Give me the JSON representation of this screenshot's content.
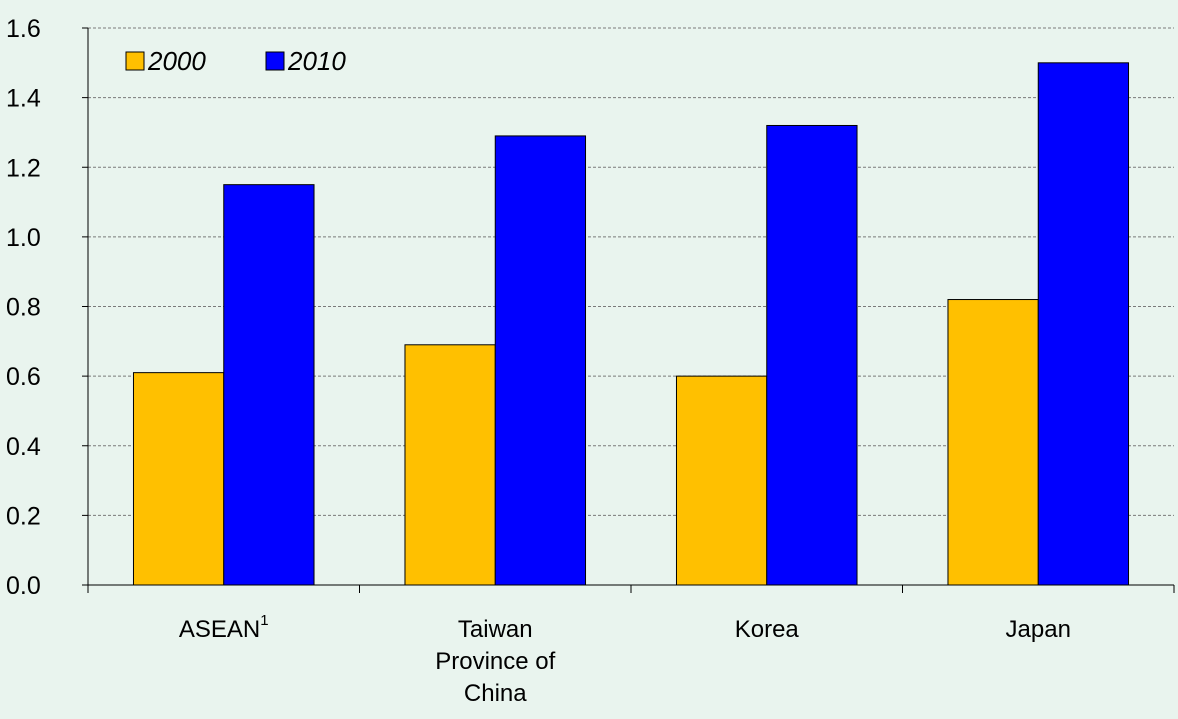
{
  "chart_data": {
    "type": "bar",
    "title": "",
    "xlabel": "",
    "ylabel": "",
    "categories": [
      {
        "lines": [
          "ASEAN"
        ],
        "superscript": "1"
      },
      {
        "lines": [
          "Taiwan",
          "Province of",
          "China"
        ]
      },
      {
        "lines": [
          "Korea"
        ]
      },
      {
        "lines": [
          "Japan"
        ]
      }
    ],
    "series": [
      {
        "name": "2000",
        "color": "#ffc000",
        "values": [
          0.61,
          0.69,
          0.6,
          0.82
        ]
      },
      {
        "name": "2010",
        "color": "#0000ff",
        "values": [
          1.15,
          1.29,
          1.32,
          1.5
        ]
      }
    ],
    "ylim": [
      0,
      1.6
    ],
    "yticks": [
      "0.0",
      "0.2",
      "0.4",
      "0.6",
      "0.8",
      "1.0",
      "1.2",
      "1.4",
      "1.6"
    ],
    "grid": true,
    "legend": {
      "placement": "top-left",
      "orientation": "horizontal"
    }
  }
}
